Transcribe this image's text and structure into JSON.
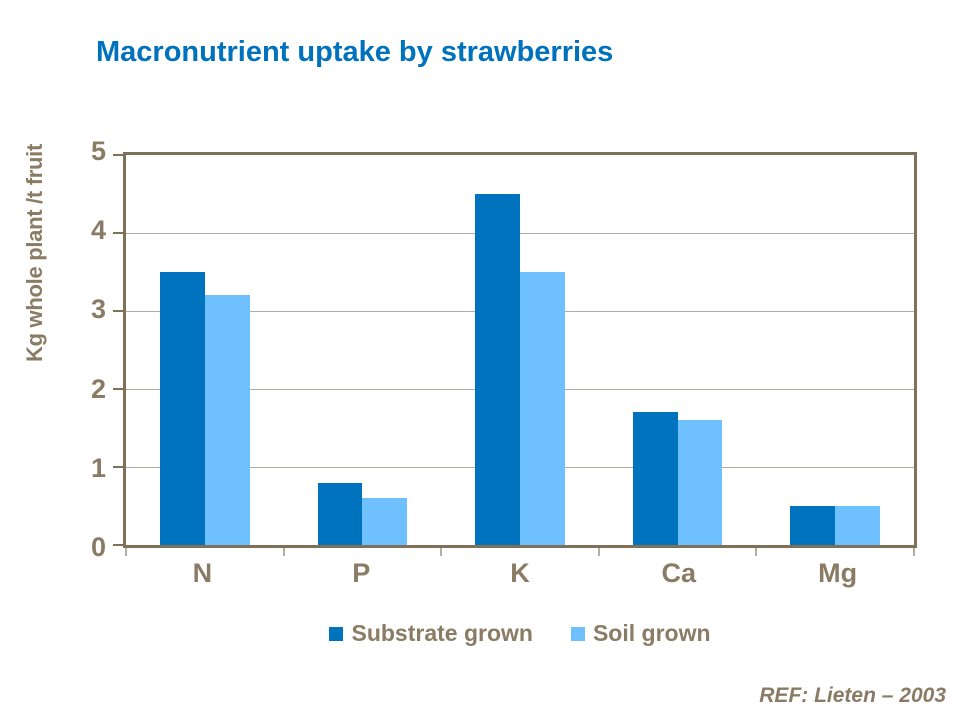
{
  "title": "Macronutrient uptake by strawberries",
  "ref_note": "REF:  Lieten – 2003",
  "colors": {
    "title": "#0071BC",
    "axis_text": "#8A7B64",
    "axis_line": "#7F7158",
    "gridline": "#B3ABA0",
    "substrate_grown": "#0073BE",
    "soil_grown": "#6FC0FF"
  },
  "chart_data": {
    "type": "bar",
    "title": "Macronutrient uptake by strawberries",
    "categories": [
      "N",
      "P",
      "K",
      "Ca",
      "Mg"
    ],
    "series": [
      {
        "name": "Substrate grown",
        "color": "#0073BE",
        "values": [
          3.5,
          0.8,
          4.5,
          1.7,
          0.5
        ]
      },
      {
        "name": "Soil grown",
        "color": "#6FC0FF",
        "values": [
          3.2,
          0.6,
          3.5,
          1.6,
          0.5
        ]
      }
    ],
    "xlabel": "",
    "ylabel": "Kg whole plant /t fruit",
    "ylim": [
      0,
      5
    ],
    "yticks": [
      0,
      1,
      2,
      3,
      4,
      5
    ],
    "grid": true,
    "legend_position": "bottom"
  }
}
